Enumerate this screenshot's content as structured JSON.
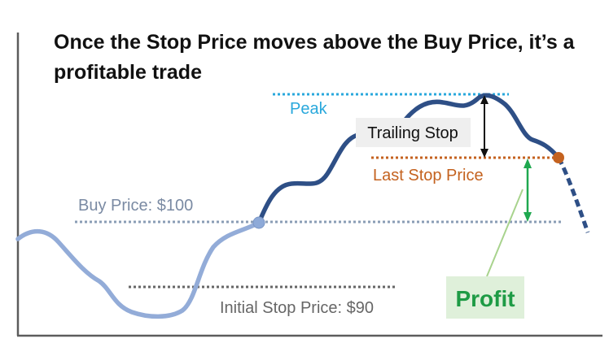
{
  "title": {
    "line1": "Once the Stop Price moves above the Buy Price, it’s a",
    "line2": "profitable trade"
  },
  "labels": {
    "peak": "Peak",
    "trailing_stop": "Trailing Stop",
    "last_stop_price": "Last Stop Price",
    "buy_price": "Buy Price: $100",
    "initial_stop_price": "Initial Stop Price: $90",
    "profit": "Profit"
  },
  "colors": {
    "price_before_buy": "#93acd8",
    "price_after_buy": "#2e4f86",
    "peak_line": "#29a8dc",
    "buy_line": "#8a9db5",
    "initial_stop_line": "#666666",
    "last_stop_line": "#c4621f",
    "last_stop_marker": "#c4621f",
    "profit_arrow": "#1fa84f",
    "profit_text": "#1e9b45",
    "profit_box": "#dff0da",
    "profit_pointer": "#a8d38d",
    "trailing_box": "#efefef",
    "axis": "#5c5c5c"
  }
}
